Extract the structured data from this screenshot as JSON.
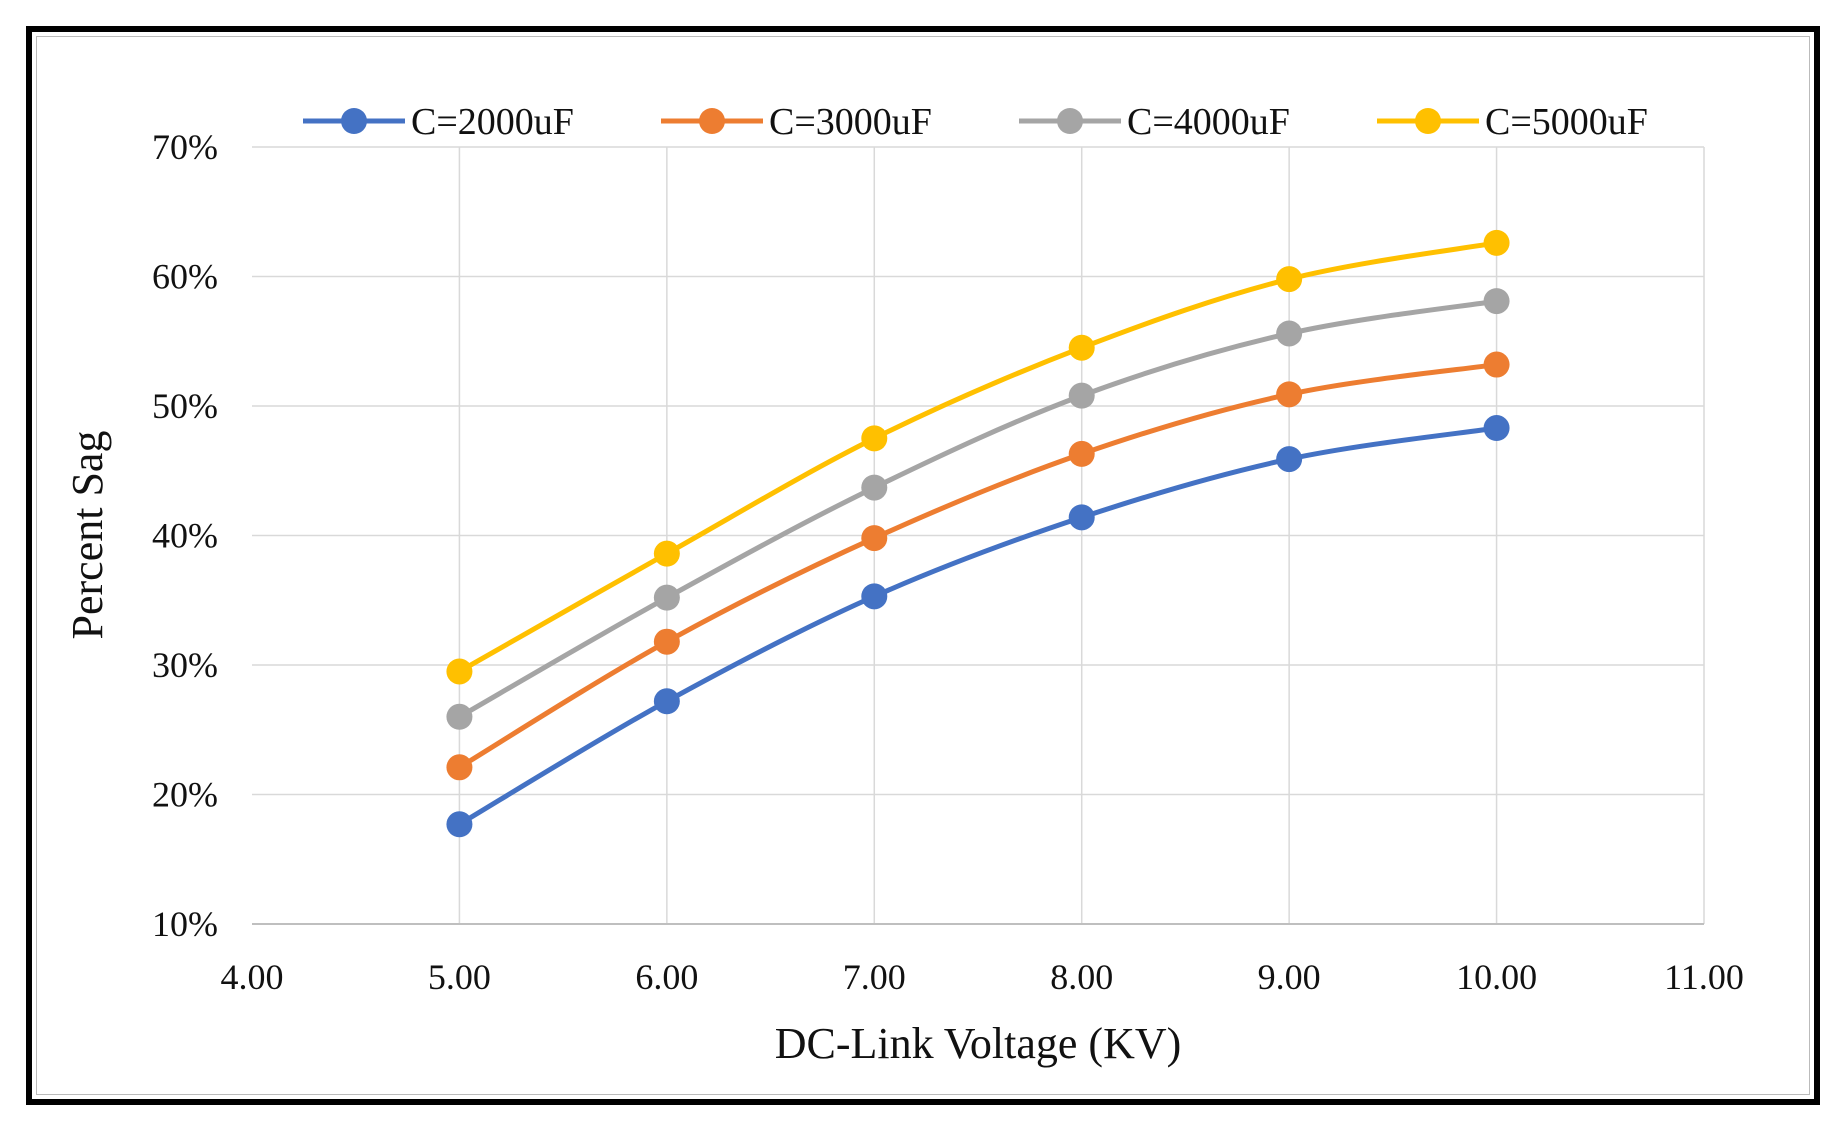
{
  "chart_data": {
    "type": "line",
    "title": "",
    "xlabel": "DC-Link Voltage (KV)",
    "ylabel": "Percent Sag",
    "xlim": [
      4,
      11
    ],
    "ylim": [
      10,
      70
    ],
    "x_ticks": [
      "4.00",
      "5.00",
      "6.00",
      "7.00",
      "8.00",
      "9.00",
      "10.00",
      "11.00"
    ],
    "y_ticks": [
      "10%",
      "20%",
      "30%",
      "40%",
      "50%",
      "60%",
      "70%"
    ],
    "grid": true,
    "legend_position": "top",
    "x": [
      5,
      6,
      7,
      8,
      9,
      10
    ],
    "series": [
      {
        "name": "C=2000uF",
        "color": "#4472C4",
        "values": [
          17.7,
          27.2,
          35.3,
          41.4,
          45.9,
          48.3
        ]
      },
      {
        "name": "C=3000uF",
        "color": "#ED7D31",
        "values": [
          22.1,
          31.8,
          39.8,
          46.3,
          50.9,
          53.2
        ]
      },
      {
        "name": "C=4000uF",
        "color": "#A5A5A5",
        "values": [
          26.0,
          35.2,
          43.7,
          50.8,
          55.6,
          58.1
        ]
      },
      {
        "name": "C=5000uF",
        "color": "#FFC000",
        "values": [
          29.5,
          38.6,
          47.5,
          54.5,
          59.8,
          62.6
        ]
      }
    ]
  }
}
